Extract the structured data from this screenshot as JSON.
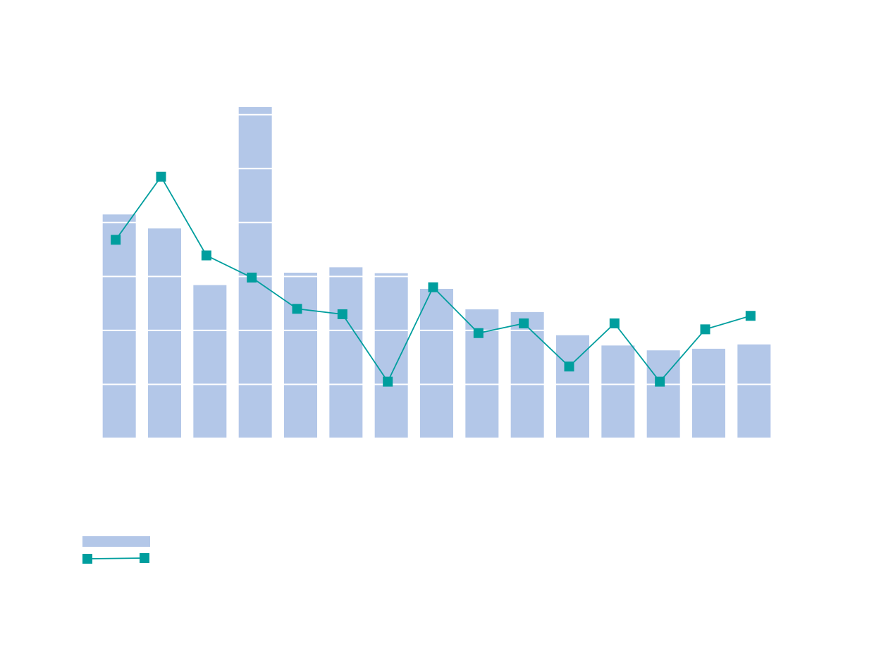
{
  "chart_data": {
    "type": "bar",
    "title": "",
    "xlabel": "",
    "ylabel": "",
    "categories": [
      "",
      "",
      "",
      "",
      "",
      "",
      "",
      "",
      "",
      "",
      "",
      "",
      "",
      "",
      ""
    ],
    "ylim": [
      0,
      6.14
    ],
    "grid": true,
    "legend": "bottom-left",
    "series": [
      {
        "type": "bar",
        "color": "#b3c7e8",
        "values": [
          4.15,
          3.89,
          2.84,
          6.14,
          3.07,
          3.17,
          3.06,
          2.77,
          2.39,
          2.34,
          1.91,
          1.72,
          1.63,
          1.66,
          1.74
        ]
      },
      {
        "type": "line",
        "color": "#009e9e",
        "marker": "square",
        "values": [
          3.68,
          4.85,
          3.39,
          2.98,
          2.4,
          2.3,
          1.05,
          2.8,
          1.95,
          2.13,
          1.33,
          2.13,
          1.05,
          2.02,
          2.27
        ]
      }
    ]
  }
}
